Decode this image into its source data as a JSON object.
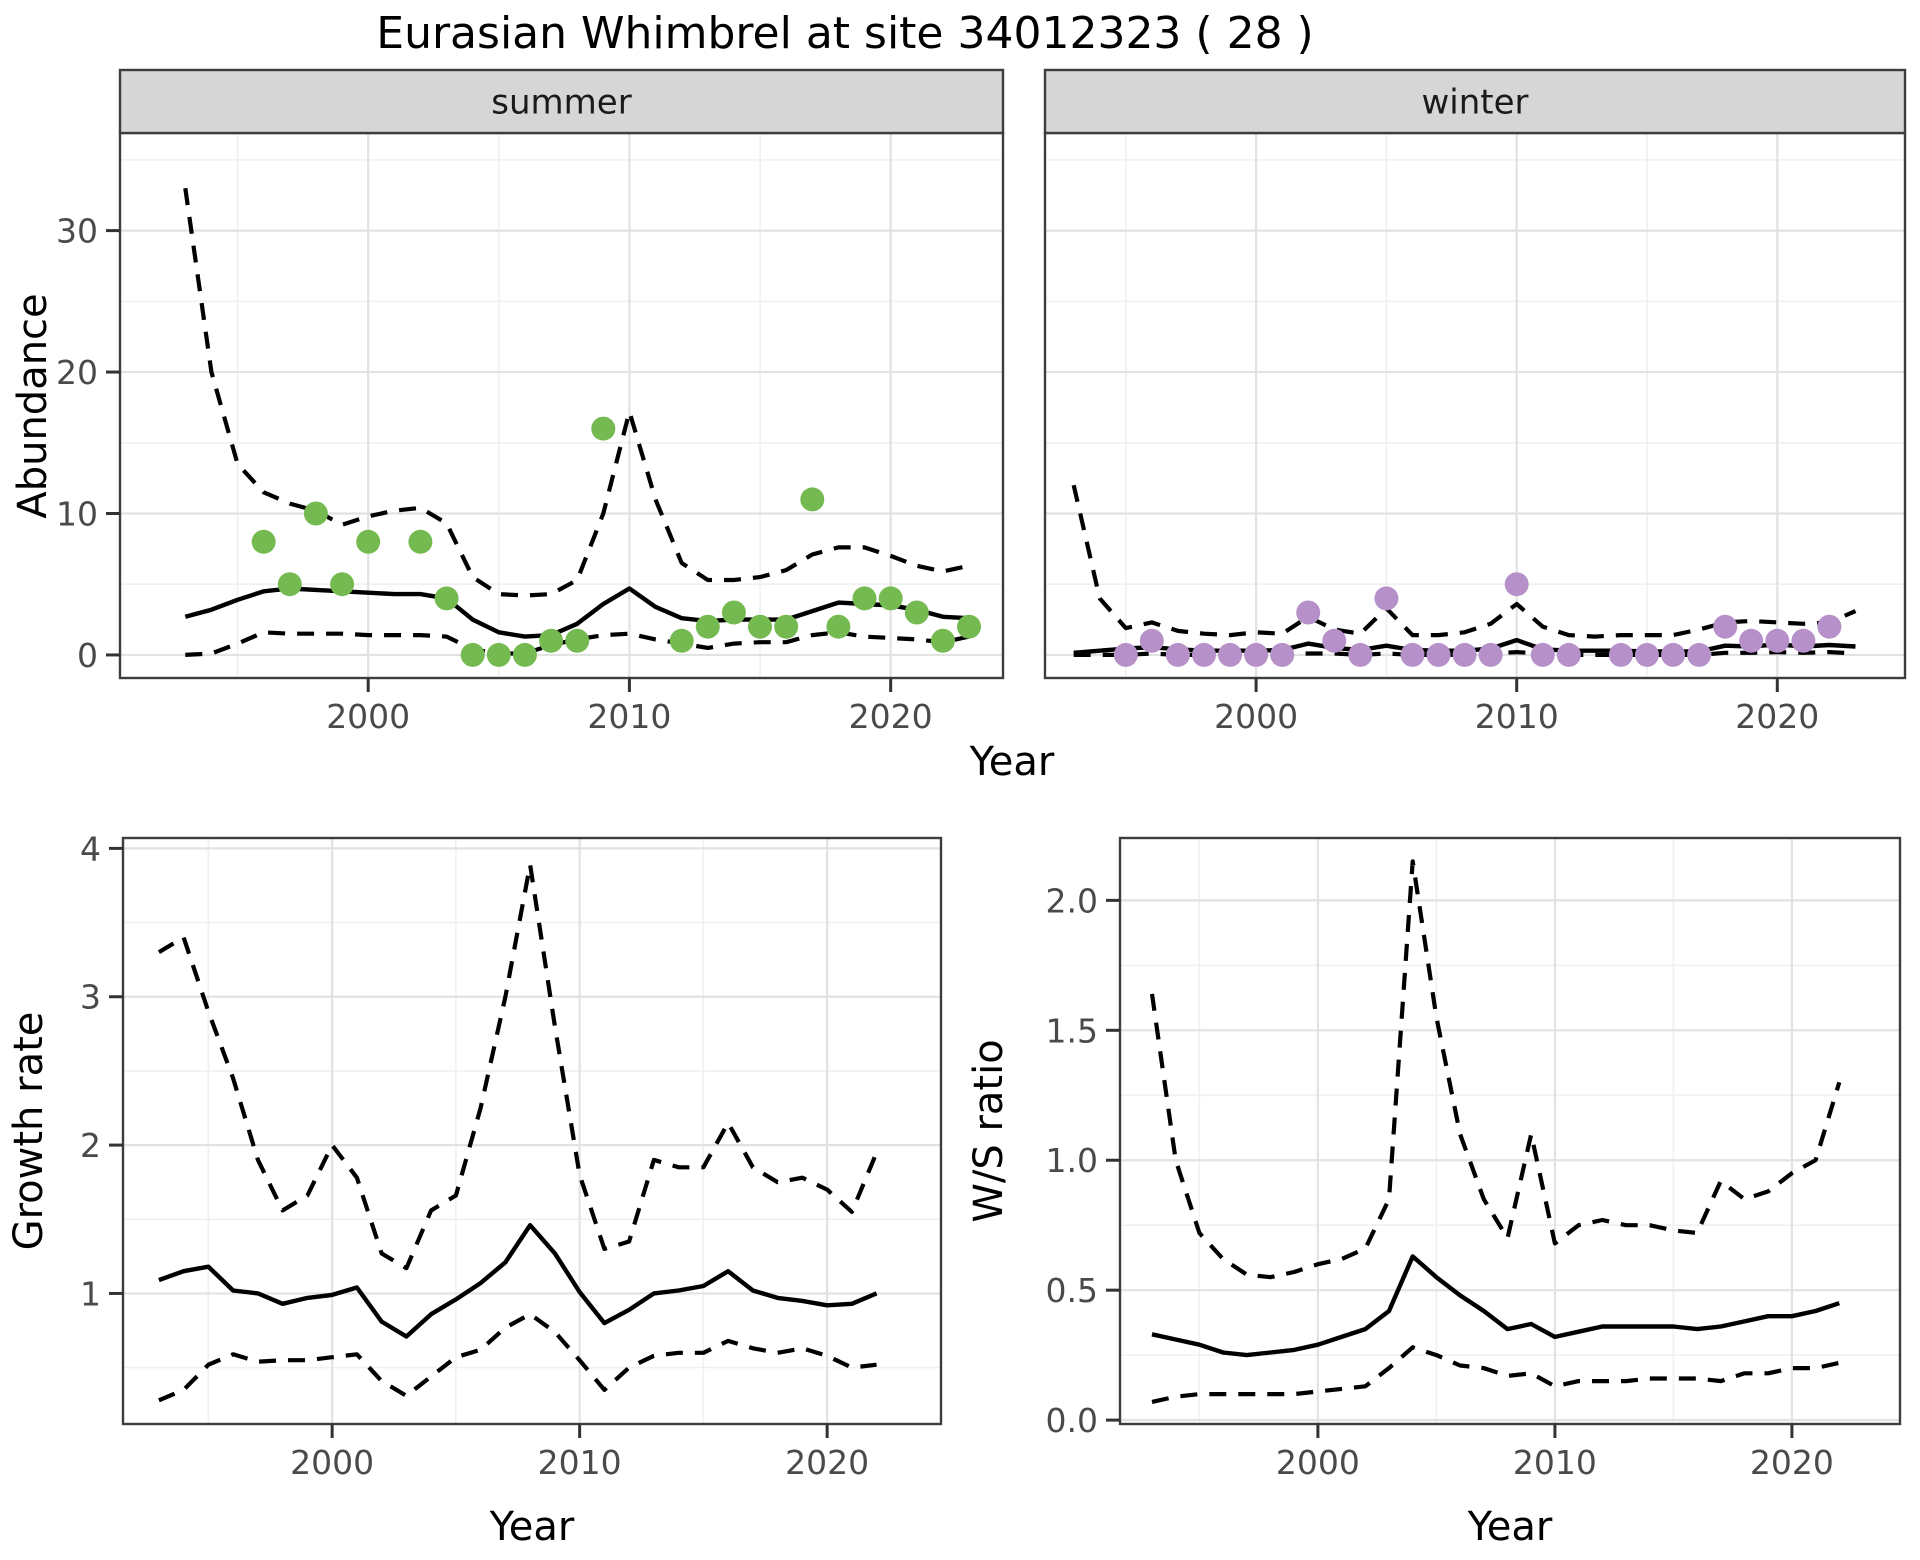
{
  "title": "Eurasian Whimbrel at site 34012323 ( 28 )",
  "axes": {
    "x_title": "Year",
    "top_y_title": "Abundance",
    "growth_y_title": "Growth rate",
    "ws_y_title": "W/S ratio"
  },
  "facets": {
    "summer": "summer",
    "winter": "winter"
  },
  "colors": {
    "summer_point": "#75ba51",
    "winter_point": "#b691c9",
    "line": "#000000",
    "grid_major": "#e2e2e2",
    "grid_minor": "#f0f0f0",
    "strip_bg": "#d6d6d6",
    "panel_border": "#3d3d3d",
    "tick_text": "#4a4a4a"
  },
  "chart_data": [
    {
      "id": "summer",
      "type": "line",
      "facet_label": "summer",
      "xlabel": "Year",
      "ylabel": "Abundance",
      "xlim": [
        1990.5,
        2024.3
      ],
      "ylim": [
        -1.63,
        36.9
      ],
      "x_ticks": [
        2000,
        2010,
        2020
      ],
      "x_tick_labels": [
        "2000",
        "2010",
        "2020"
      ],
      "x_minor": [
        1995,
        2005,
        2015
      ],
      "y_ticks": [
        0,
        10,
        20,
        30
      ],
      "y_tick_labels": [
        "0",
        "10",
        "20",
        "30"
      ],
      "y_minor": [
        5,
        15,
        25,
        35
      ],
      "show_y_tick_labels": true,
      "years": [
        1993,
        1994,
        1995,
        1996,
        1997,
        1998,
        1999,
        2000,
        2001,
        2002,
        2003,
        2004,
        2005,
        2006,
        2007,
        2008,
        2009,
        2010,
        2011,
        2012,
        2013,
        2014,
        2015,
        2016,
        2017,
        2018,
        2019,
        2020,
        2021,
        2022,
        2023
      ],
      "series": [
        {
          "name": "mean",
          "style": "solid",
          "values": [
            2.7,
            3.2,
            3.9,
            4.5,
            4.7,
            4.6,
            4.5,
            4.4,
            4.3,
            4.3,
            4.0,
            2.5,
            1.6,
            1.3,
            1.4,
            2.2,
            3.6,
            4.7,
            3.4,
            2.6,
            2.4,
            2.5,
            2.5,
            2.5,
            3.1,
            3.7,
            3.6,
            3.5,
            3.2,
            2.7,
            2.6
          ]
        },
        {
          "name": "upper_ci",
          "style": "dashed",
          "values": [
            33,
            20,
            13.5,
            11.5,
            10.7,
            10.2,
            9.2,
            9.8,
            10.2,
            10.4,
            9.3,
            5.5,
            4.3,
            4.2,
            4.3,
            5.3,
            10,
            17.2,
            11,
            6.5,
            5.3,
            5.3,
            5.5,
            6.0,
            7.1,
            7.6,
            7.6,
            7.0,
            6.3,
            5.9,
            6.3
          ]
        },
        {
          "name": "lower_ci",
          "style": "dashed",
          "values": [
            0,
            0.1,
            0.8,
            1.6,
            1.5,
            1.5,
            1.5,
            1.4,
            1.4,
            1.4,
            1.3,
            0.4,
            0.1,
            0.1,
            0.7,
            1.1,
            1.4,
            1.5,
            1.1,
            0.8,
            0.5,
            0.8,
            0.9,
            0.9,
            1.4,
            1.6,
            1.3,
            1.2,
            1.1,
            0.9,
            1.3
          ]
        }
      ],
      "points": {
        "label": "observed summer counts",
        "color_key": "summer_point",
        "data": [
          [
            1996,
            8
          ],
          [
            1997,
            5
          ],
          [
            1998,
            10
          ],
          [
            1999,
            5
          ],
          [
            2000,
            8
          ],
          [
            2002,
            8
          ],
          [
            2003,
            4
          ],
          [
            2004,
            0
          ],
          [
            2005,
            0
          ],
          [
            2006,
            0
          ],
          [
            2007,
            1
          ],
          [
            2008,
            1
          ],
          [
            2009,
            16
          ],
          [
            2012,
            1
          ],
          [
            2013,
            2
          ],
          [
            2014,
            3
          ],
          [
            2015,
            2
          ],
          [
            2016,
            2
          ],
          [
            2017,
            11
          ],
          [
            2018,
            2
          ],
          [
            2019,
            4
          ],
          [
            2020,
            4
          ],
          [
            2021,
            3
          ],
          [
            2022,
            1
          ],
          [
            2023,
            2
          ]
        ]
      }
    },
    {
      "id": "winter",
      "type": "line",
      "facet_label": "winter",
      "xlabel": "Year",
      "ylabel": "Abundance",
      "xlim": [
        1991.9,
        2024.9
      ],
      "ylim": [
        -1.63,
        36.9
      ],
      "x_ticks": [
        2000,
        2010,
        2020
      ],
      "x_tick_labels": [
        "2000",
        "2010",
        "2020"
      ],
      "x_minor": [
        1995,
        2005,
        2015
      ],
      "y_ticks": [
        0,
        10,
        20,
        30
      ],
      "y_tick_labels": [
        "0",
        "10",
        "20",
        "30"
      ],
      "y_minor": [
        5,
        15,
        25,
        35
      ],
      "show_y_tick_labels": false,
      "years": [
        1993,
        1994,
        1995,
        1996,
        1997,
        1998,
        1999,
        2000,
        2001,
        2002,
        2003,
        2004,
        2005,
        2006,
        2007,
        2008,
        2009,
        2010,
        2011,
        2012,
        2013,
        2014,
        2015,
        2016,
        2017,
        2018,
        2019,
        2020,
        2021,
        2022,
        2023
      ],
      "series": [
        {
          "name": "mean",
          "style": "solid",
          "values": [
            0.15,
            0.3,
            0.45,
            0.55,
            0.4,
            0.3,
            0.3,
            0.3,
            0.35,
            0.8,
            0.5,
            0.35,
            0.65,
            0.35,
            0.3,
            0.3,
            0.45,
            1.05,
            0.4,
            0.3,
            0.3,
            0.3,
            0.25,
            0.25,
            0.25,
            0.65,
            0.6,
            0.75,
            0.6,
            0.7,
            0.6
          ]
        },
        {
          "name": "upper_ci",
          "style": "dashed",
          "values": [
            12,
            4,
            1.9,
            2.3,
            1.7,
            1.5,
            1.4,
            1.6,
            1.5,
            2.7,
            1.8,
            1.5,
            3.3,
            1.4,
            1.4,
            1.6,
            2.2,
            3.6,
            2.0,
            1.4,
            1.3,
            1.4,
            1.4,
            1.4,
            1.8,
            2.3,
            2.4,
            2.3,
            2.2,
            2.3,
            3.1
          ]
        },
        {
          "name": "lower_ci",
          "style": "dashed",
          "values": [
            0,
            0,
            0,
            0.1,
            0,
            0,
            0,
            0,
            0,
            0.1,
            0.1,
            0,
            0.1,
            0,
            0,
            0,
            0.1,
            0.2,
            0.1,
            0,
            0,
            0,
            0,
            0,
            0,
            0.15,
            0.15,
            0.2,
            0.15,
            0.2,
            0.1
          ]
        }
      ],
      "points": {
        "label": "observed winter counts",
        "color_key": "winter_point",
        "data": [
          [
            1995,
            0
          ],
          [
            1996,
            1
          ],
          [
            1997,
            0
          ],
          [
            1998,
            0
          ],
          [
            1999,
            0
          ],
          [
            2000,
            0
          ],
          [
            2001,
            0
          ],
          [
            2002,
            3
          ],
          [
            2003,
            1
          ],
          [
            2004,
            0
          ],
          [
            2005,
            4
          ],
          [
            2006,
            0
          ],
          [
            2007,
            0
          ],
          [
            2008,
            0
          ],
          [
            2009,
            0
          ],
          [
            2010,
            5
          ],
          [
            2011,
            0
          ],
          [
            2012,
            0
          ],
          [
            2014,
            0
          ],
          [
            2015,
            0
          ],
          [
            2016,
            0
          ],
          [
            2017,
            0
          ],
          [
            2018,
            2
          ],
          [
            2019,
            1
          ],
          [
            2020,
            1
          ],
          [
            2021,
            1
          ],
          [
            2022,
            2
          ]
        ]
      }
    },
    {
      "id": "growth_rate",
      "type": "line",
      "facet_label": null,
      "xlabel": "Year",
      "ylabel": "Growth rate",
      "xlim": [
        1991.55,
        2024.6
      ],
      "ylim": [
        0.12,
        4.07
      ],
      "x_ticks": [
        2000,
        2010,
        2020
      ],
      "x_tick_labels": [
        "2000",
        "2010",
        "2020"
      ],
      "x_minor": [
        1995,
        2005,
        2015
      ],
      "y_ticks": [
        1,
        2,
        3,
        4
      ],
      "y_tick_labels": [
        "1",
        "2",
        "3",
        "4"
      ],
      "y_minor": [
        0.5,
        1.5,
        2.5,
        3.5
      ],
      "show_y_tick_labels": true,
      "years": [
        1993,
        1994,
        1995,
        1996,
        1997,
        1998,
        1999,
        2000,
        2001,
        2002,
        2003,
        2004,
        2005,
        2006,
        2007,
        2008,
        2009,
        2010,
        2011,
        2012,
        2013,
        2014,
        2015,
        2016,
        2017,
        2018,
        2019,
        2020,
        2021,
        2022
      ],
      "series": [
        {
          "name": "mean",
          "style": "solid",
          "values": [
            1.09,
            1.15,
            1.18,
            1.02,
            1.0,
            0.93,
            0.97,
            0.99,
            1.04,
            0.81,
            0.71,
            0.86,
            0.96,
            1.07,
            1.21,
            1.46,
            1.27,
            1.01,
            0.8,
            0.89,
            1.0,
            1.02,
            1.05,
            1.15,
            1.02,
            0.97,
            0.95,
            0.92,
            0.93,
            1.0
          ]
        },
        {
          "name": "upper_ci",
          "style": "dashed",
          "values": [
            3.3,
            3.4,
            2.9,
            2.45,
            1.9,
            1.56,
            1.66,
            2.0,
            1.78,
            1.27,
            1.17,
            1.56,
            1.66,
            2.25,
            3.0,
            3.89,
            2.8,
            1.8,
            1.3,
            1.35,
            1.9,
            1.85,
            1.85,
            2.15,
            1.85,
            1.75,
            1.78,
            1.7,
            1.55,
            1.95
          ]
        },
        {
          "name": "lower_ci",
          "style": "dashed",
          "values": [
            0.28,
            0.35,
            0.52,
            0.59,
            0.54,
            0.55,
            0.55,
            0.57,
            0.59,
            0.41,
            0.31,
            0.44,
            0.57,
            0.62,
            0.77,
            0.86,
            0.74,
            0.55,
            0.35,
            0.5,
            0.58,
            0.6,
            0.6,
            0.68,
            0.63,
            0.6,
            0.63,
            0.58,
            0.5,
            0.52
          ]
        }
      ],
      "points": null
    },
    {
      "id": "ws_ratio",
      "type": "line",
      "facet_label": null,
      "xlabel": "Year",
      "ylabel": "W/S ratio",
      "xlim": [
        1991.65,
        2024.56
      ],
      "ylim": [
        -0.015,
        2.24
      ],
      "x_ticks": [
        2000,
        2010,
        2020
      ],
      "x_tick_labels": [
        "2000",
        "2010",
        "2020"
      ],
      "x_minor": [
        1995,
        2005,
        2015
      ],
      "y_ticks": [
        0,
        0.5,
        1.0,
        1.5,
        2.0
      ],
      "y_tick_labels": [
        "0.0",
        "0.5",
        "1.0",
        "1.5",
        "2.0"
      ],
      "y_minor": [
        0.25,
        0.75,
        1.25,
        1.75
      ],
      "show_y_tick_labels": true,
      "years": [
        1993,
        1994,
        1995,
        1996,
        1997,
        1998,
        1999,
        2000,
        2001,
        2002,
        2003,
        2004,
        2005,
        2006,
        2007,
        2008,
        2009,
        2010,
        2011,
        2012,
        2013,
        2014,
        2015,
        2016,
        2017,
        2018,
        2019,
        2020,
        2021,
        2022
      ],
      "series": [
        {
          "name": "mean",
          "style": "solid",
          "values": [
            0.33,
            0.31,
            0.29,
            0.26,
            0.25,
            0.26,
            0.27,
            0.29,
            0.32,
            0.35,
            0.42,
            0.63,
            0.55,
            0.48,
            0.42,
            0.35,
            0.37,
            0.32,
            0.34,
            0.36,
            0.36,
            0.36,
            0.36,
            0.35,
            0.36,
            0.38,
            0.4,
            0.4,
            0.42,
            0.45
          ]
        },
        {
          "name": "upper_ci",
          "style": "dashed",
          "values": [
            1.64,
            1.0,
            0.72,
            0.62,
            0.56,
            0.55,
            0.57,
            0.6,
            0.62,
            0.66,
            0.85,
            2.15,
            1.55,
            1.1,
            0.85,
            0.7,
            1.1,
            0.68,
            0.75,
            0.77,
            0.75,
            0.75,
            0.73,
            0.72,
            0.92,
            0.85,
            0.88,
            0.95,
            1.0,
            1.3
          ]
        },
        {
          "name": "lower_ci",
          "style": "dashed",
          "values": [
            0.07,
            0.09,
            0.1,
            0.1,
            0.1,
            0.1,
            0.1,
            0.11,
            0.12,
            0.13,
            0.2,
            0.28,
            0.25,
            0.21,
            0.2,
            0.17,
            0.18,
            0.13,
            0.15,
            0.15,
            0.15,
            0.16,
            0.16,
            0.16,
            0.15,
            0.18,
            0.18,
            0.2,
            0.2,
            0.22
          ]
        }
      ],
      "points": null
    }
  ]
}
